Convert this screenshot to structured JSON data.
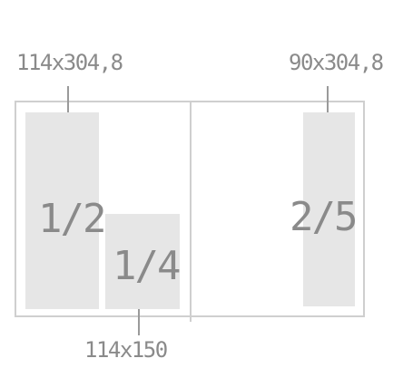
{
  "dimensions": {
    "top_left": "114x304,8",
    "top_right": "90x304,8",
    "bottom": "114x150"
  },
  "blocks": [
    {
      "fraction": "1/2"
    },
    {
      "fraction": "1/4"
    },
    {
      "fraction": "2/5"
    }
  ],
  "colors": {
    "frame": "#cfcfcf",
    "block_fill": "#e6e6e6",
    "text": "#8a8a8a"
  }
}
